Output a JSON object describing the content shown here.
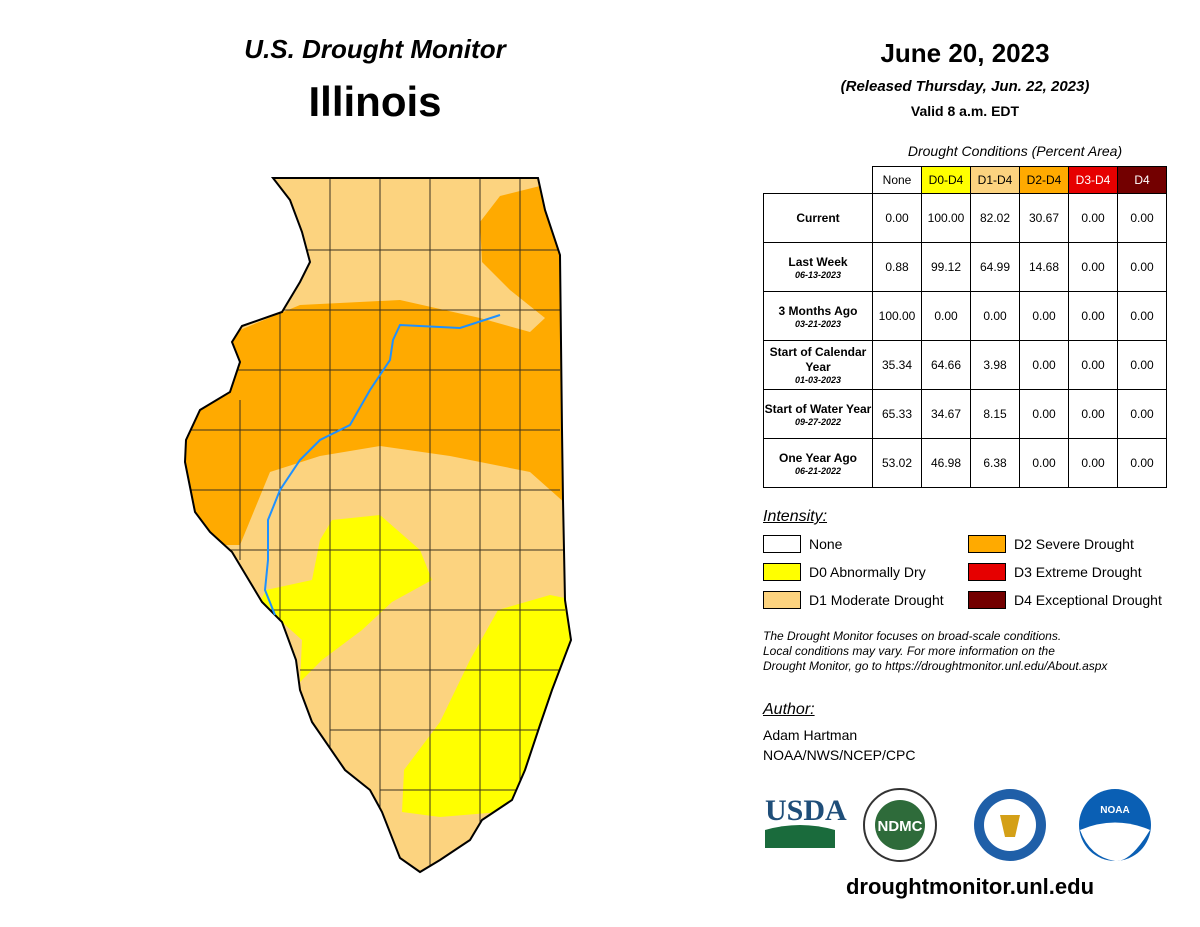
{
  "header": {
    "title": "U.S. Drought Monitor",
    "state": "Illinois",
    "date": "June 20, 2023",
    "released": "(Released Thursday, Jun. 22, 2023)",
    "valid": "Valid 8 a.m. EDT"
  },
  "table": {
    "caption": "Drought Conditions (Percent Area)",
    "columns": [
      "None",
      "D0-D4",
      "D1-D4",
      "D2-D4",
      "D3-D4",
      "D4"
    ],
    "column_colors": [
      "#FFFFFF",
      "#FFFF00",
      "#FCD37F",
      "#FFAA00",
      "#E60000",
      "#730000"
    ],
    "rows": [
      {
        "label": "Current",
        "date": "",
        "values": [
          "0.00",
          "100.00",
          "82.02",
          "30.67",
          "0.00",
          "0.00"
        ]
      },
      {
        "label": "Last Week",
        "date": "06-13-2023",
        "values": [
          "0.88",
          "99.12",
          "64.99",
          "14.68",
          "0.00",
          "0.00"
        ]
      },
      {
        "label": "3 Months Ago",
        "date": "03-21-2023",
        "values": [
          "100.00",
          "0.00",
          "0.00",
          "0.00",
          "0.00",
          "0.00"
        ]
      },
      {
        "label": "Start of Calendar Year",
        "date": "01-03-2023",
        "values": [
          "35.34",
          "64.66",
          "3.98",
          "0.00",
          "0.00",
          "0.00"
        ]
      },
      {
        "label": "Start of Water Year",
        "date": "09-27-2022",
        "values": [
          "65.33",
          "34.67",
          "8.15",
          "0.00",
          "0.00",
          "0.00"
        ]
      },
      {
        "label": "One Year Ago",
        "date": "06-21-2022",
        "values": [
          "53.02",
          "46.98",
          "6.38",
          "0.00",
          "0.00",
          "0.00"
        ]
      }
    ]
  },
  "legend": {
    "title": "Intensity:",
    "items": [
      {
        "label": "None",
        "color": "#FFFFFF"
      },
      {
        "label": "D0 Abnormally Dry",
        "color": "#FFFF00"
      },
      {
        "label": "D1 Moderate Drought",
        "color": "#FCD37F"
      },
      {
        "label": "D2 Severe Drought",
        "color": "#FFAA00"
      },
      {
        "label": "D3 Extreme Drought",
        "color": "#E60000"
      },
      {
        "label": "D4 Exceptional Drought",
        "color": "#730000"
      }
    ]
  },
  "note": [
    "The Drought Monitor focuses on broad-scale conditions.",
    "Local conditions may vary. For more information on the",
    "Drought Monitor, go to https://droughtmonitor.unl.edu/About.aspx"
  ],
  "author": {
    "title": "Author:",
    "name": "Adam Hartman",
    "org": "NOAA/NWS/NCEP/CPC"
  },
  "logos": {
    "usda": "USDA",
    "ndmc": "NDMC",
    "noaa": "NOAA"
  },
  "footer_url": "droughtmonitor.unl.edu",
  "map": {
    "river_color": "#1E90FF"
  }
}
